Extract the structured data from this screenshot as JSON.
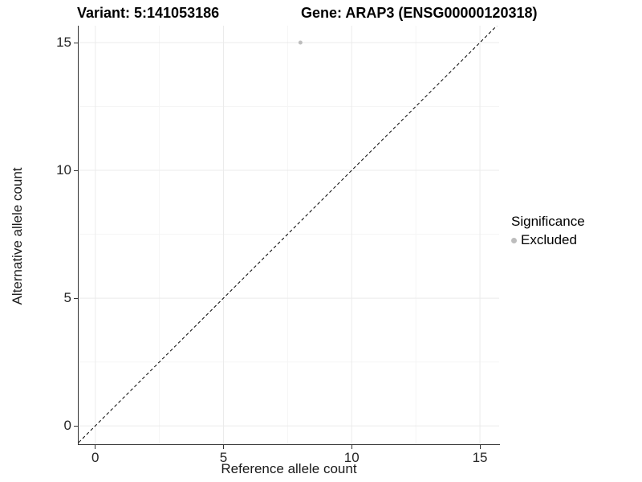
{
  "chart_data": {
    "type": "scatter",
    "title_left": "Variant: 5:141053186",
    "title_right": "Gene: ARAP3 (ENSG00000120318)",
    "xlabel": "Reference allele count",
    "ylabel": "Alternative allele count",
    "xlim": [
      -0.65,
      15.75
    ],
    "ylim": [
      -0.72,
      15.66
    ],
    "xticks": [
      0,
      5,
      10,
      15
    ],
    "yticks": [
      0,
      5,
      10,
      15
    ],
    "minor_xticks": [
      2.5,
      7.5,
      12.5
    ],
    "minor_yticks": [
      2.5,
      7.5,
      12.5
    ],
    "grid": true,
    "legend_position": "right",
    "series": [
      {
        "name": "Excluded",
        "color": "#bdbdbd",
        "points": [
          {
            "x": 8,
            "y": 15
          }
        ],
        "point_radius": 2.5
      }
    ],
    "reference_line": {
      "type": "identity",
      "style": "dashed",
      "color": "#000000",
      "dash": "4 3"
    }
  },
  "legend": {
    "title": "Significance",
    "items": [
      {
        "label": "Excluded",
        "color": "#bdbdbd"
      }
    ]
  },
  "colors": {
    "grid_major": "#ebebeb",
    "grid_minor": "#f5f5f5",
    "axis_line": "#333333",
    "tick_label": "#262626",
    "title": "#000000"
  }
}
